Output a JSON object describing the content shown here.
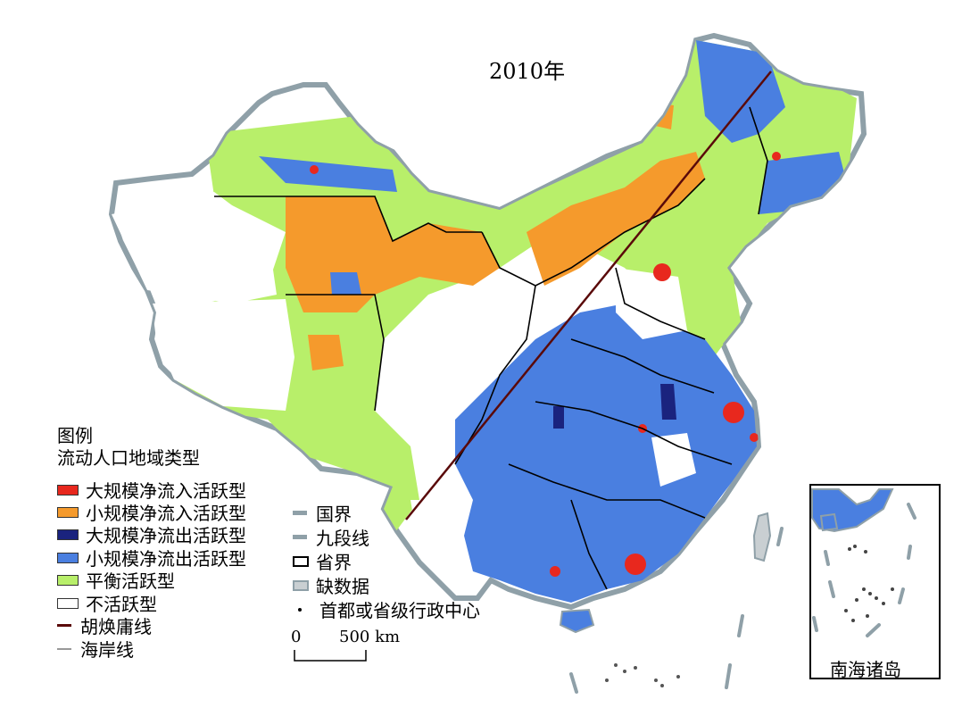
{
  "map": {
    "title": "2010年",
    "legend": {
      "heading": "图例",
      "subheading": "流动人口地域类型",
      "types": [
        {
          "label": "大规模净流入活跃型",
          "color": "#e8281e"
        },
        {
          "label": "小规模净流入活跃型",
          "color": "#f59a2c"
        },
        {
          "label": "大规模净流出活跃型",
          "color": "#1a237e"
        },
        {
          "label": "小规模净流出活跃型",
          "color": "#4a7fe0"
        },
        {
          "label": "平衡活跃型",
          "color": "#b8ef6a"
        },
        {
          "label": "不活跃型",
          "color": "#ffffff"
        }
      ],
      "lines_left": [
        {
          "label": "胡焕庸线",
          "color": "#5a0a0a"
        },
        {
          "label": "海岸线",
          "color": "#999999"
        }
      ],
      "lines_right": [
        {
          "label": "国界",
          "color": "#8fa0a8"
        },
        {
          "label": "九段线",
          "color": "#8fa0a8"
        },
        {
          "label": "省界",
          "color": "#000000"
        },
        {
          "label": "缺数据",
          "color": "#c9cfd2"
        },
        {
          "label": "首都或省级行政中心",
          "color": "#000000"
        }
      ]
    },
    "scale": {
      "zero": "0",
      "value": "500 km"
    },
    "inset": {
      "label": "南海诸岛"
    }
  }
}
